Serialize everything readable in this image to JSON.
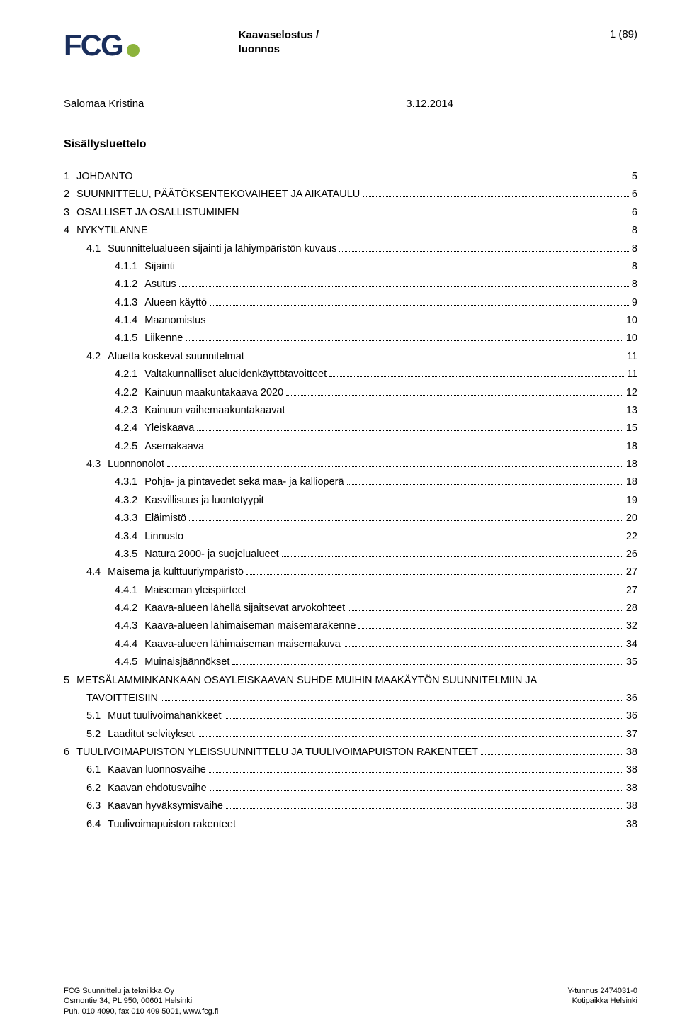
{
  "header": {
    "logo_text": "FCG",
    "title_line1": "Kaavaselostus /",
    "title_line2": "luonnos",
    "page_indicator": "1 (89)"
  },
  "author": {
    "name": "Salomaa Kristina",
    "date": "3.12.2014"
  },
  "toc_title": "Sisällysluettelo",
  "toc": [
    {
      "lvl": 0,
      "num": "1",
      "label": "JOHDANTO",
      "pg": "5"
    },
    {
      "lvl": 0,
      "num": "2",
      "label": "SUUNNITTELU, PÄÄTÖKSENTEKOVAIHEET JA AIKATAULU",
      "pg": "6"
    },
    {
      "lvl": 0,
      "num": "3",
      "label": "OSALLISET JA OSALLISTUMINEN",
      "pg": "6"
    },
    {
      "lvl": 0,
      "num": "4",
      "label": "NYKYTILANNE",
      "pg": "8"
    },
    {
      "lvl": 1,
      "num": "4.1",
      "label": "Suunnittelualueen sijainti ja lähiympäristön kuvaus",
      "pg": "8"
    },
    {
      "lvl": 2,
      "num": "4.1.1",
      "label": "Sijainti",
      "pg": "8"
    },
    {
      "lvl": 2,
      "num": "4.1.2",
      "label": "Asutus",
      "pg": "8"
    },
    {
      "lvl": 2,
      "num": "4.1.3",
      "label": "Alueen käyttö",
      "pg": "9"
    },
    {
      "lvl": 2,
      "num": "4.1.4",
      "label": "Maanomistus",
      "pg": "10"
    },
    {
      "lvl": 2,
      "num": "4.1.5",
      "label": "Liikenne",
      "pg": "10"
    },
    {
      "lvl": 1,
      "num": "4.2",
      "label": "Aluetta koskevat suunnitelmat",
      "pg": "11"
    },
    {
      "lvl": 2,
      "num": "4.2.1",
      "label": "Valtakunnalliset alueidenkäyttötavoitteet",
      "pg": "11"
    },
    {
      "lvl": 2,
      "num": "4.2.2",
      "label": "Kainuun maakuntakaava 2020",
      "pg": "12"
    },
    {
      "lvl": 2,
      "num": "4.2.3",
      "label": "Kainuun vaihemaakuntakaavat",
      "pg": "13"
    },
    {
      "lvl": 2,
      "num": "4.2.4",
      "label": "Yleiskaava",
      "pg": "15"
    },
    {
      "lvl": 2,
      "num": "4.2.5",
      "label": "Asemakaava",
      "pg": "18"
    },
    {
      "lvl": 1,
      "num": "4.3",
      "label": "Luonnonolot",
      "pg": "18"
    },
    {
      "lvl": 2,
      "num": "4.3.1",
      "label": "Pohja- ja pintavedet sekä maa- ja kallioperä",
      "pg": "18"
    },
    {
      "lvl": 2,
      "num": "4.3.2",
      "label": "Kasvillisuus ja luontotyypit",
      "pg": "19"
    },
    {
      "lvl": 2,
      "num": "4.3.3",
      "label": "Eläimistö",
      "pg": "20"
    },
    {
      "lvl": 2,
      "num": "4.3.4",
      "label": "Linnusto",
      "pg": "22"
    },
    {
      "lvl": 2,
      "num": "4.3.5",
      "label": "Natura 2000- ja suojelualueet",
      "pg": "26"
    },
    {
      "lvl": 1,
      "num": "4.4",
      "label": "Maisema ja kulttuuriympäristö",
      "pg": "27"
    },
    {
      "lvl": 2,
      "num": "4.4.1",
      "label": "Maiseman yleispiirteet",
      "pg": "27"
    },
    {
      "lvl": 2,
      "num": "4.4.2",
      "label": "Kaava-alueen lähellä sijaitsevat arvokohteet",
      "pg": "28"
    },
    {
      "lvl": 2,
      "num": "4.4.3",
      "label": "Kaava-alueen lähimaiseman maisemarakenne",
      "pg": "32"
    },
    {
      "lvl": 2,
      "num": "4.4.4",
      "label": "Kaava-alueen lähimaiseman maisemakuva",
      "pg": "34"
    },
    {
      "lvl": 2,
      "num": "4.4.5",
      "label": "Muinaisjäännökset",
      "pg": "35"
    },
    {
      "lvl": 0,
      "num": "5",
      "label": "METSÄLAMMINKANKAAN OSAYLEISKAAVAN SUHDE MUIHIN MAAKÄYTÖN SUUNNITELMIIN JA",
      "pg": "",
      "nolead": true
    },
    {
      "lvl": 0,
      "num": "",
      "label": "TAVOITTEISIIN",
      "pg": "36",
      "cont": true
    },
    {
      "lvl": 1,
      "num": "5.1",
      "label": "Muut tuulivoimahankkeet",
      "pg": "36"
    },
    {
      "lvl": 1,
      "num": "5.2",
      "label": "Laaditut selvitykset",
      "pg": "37"
    },
    {
      "lvl": 0,
      "num": "6",
      "label": "TUULIVOIMAPUISTON YLEISSUUNNITTELU JA TUULIVOIMAPUISTON RAKENTEET",
      "pg": "38"
    },
    {
      "lvl": 1,
      "num": "6.1",
      "label": "Kaavan luonnosvaihe",
      "pg": "38"
    },
    {
      "lvl": 1,
      "num": "6.2",
      "label": "Kaavan ehdotusvaihe",
      "pg": "38"
    },
    {
      "lvl": 1,
      "num": "6.3",
      "label": "Kaavan hyväksymisvaihe",
      "pg": "38"
    },
    {
      "lvl": 1,
      "num": "6.4",
      "label": "Tuulivoimapuiston rakenteet",
      "pg": "38"
    }
  ],
  "footer": {
    "left_line1": "FCG Suunnittelu ja tekniikka Oy",
    "left_line2": "Osmontie 34, PL 950, 00601 Helsinki",
    "left_line3": "Puh. 010 4090, fax 010 409 5001, www.fcg.fi",
    "right_line1": "Y-tunnus 2474031-0",
    "right_line2": "Kotipaikka Helsinki"
  }
}
